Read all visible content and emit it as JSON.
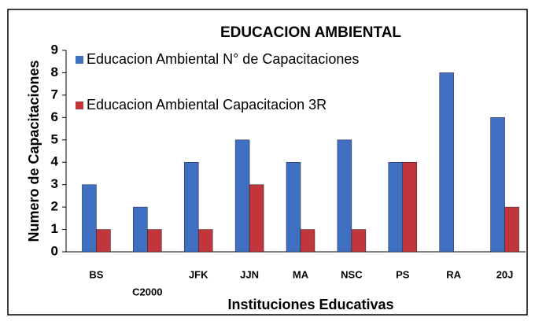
{
  "chart_data": {
    "type": "bar",
    "title": "EDUCACION AMBIENTAL",
    "x_label": "Instituciones Educativas",
    "y_label": "Numero de Capacitaciones",
    "categories": [
      "BS",
      "C2000",
      "JFK",
      "JJN",
      "MA",
      "NSC",
      "PS",
      "RA",
      "20J"
    ],
    "series": [
      {
        "name": "Educacion Ambiental  N° de Capacitaciones",
        "color": "#3f6fc0",
        "values": [
          3,
          2,
          4,
          5,
          4,
          5,
          4,
          8,
          6
        ]
      },
      {
        "name": "Educacion Ambiental  Capacitacion 3R",
        "color": "#c0363a",
        "values": [
          1,
          1,
          1,
          3,
          1,
          1,
          4,
          0,
          2
        ]
      }
    ],
    "ylim": [
      0,
      9
    ],
    "yticks": [
      0,
      1,
      2,
      3,
      4,
      5,
      6,
      7,
      8,
      9
    ],
    "legend": "upper left"
  }
}
